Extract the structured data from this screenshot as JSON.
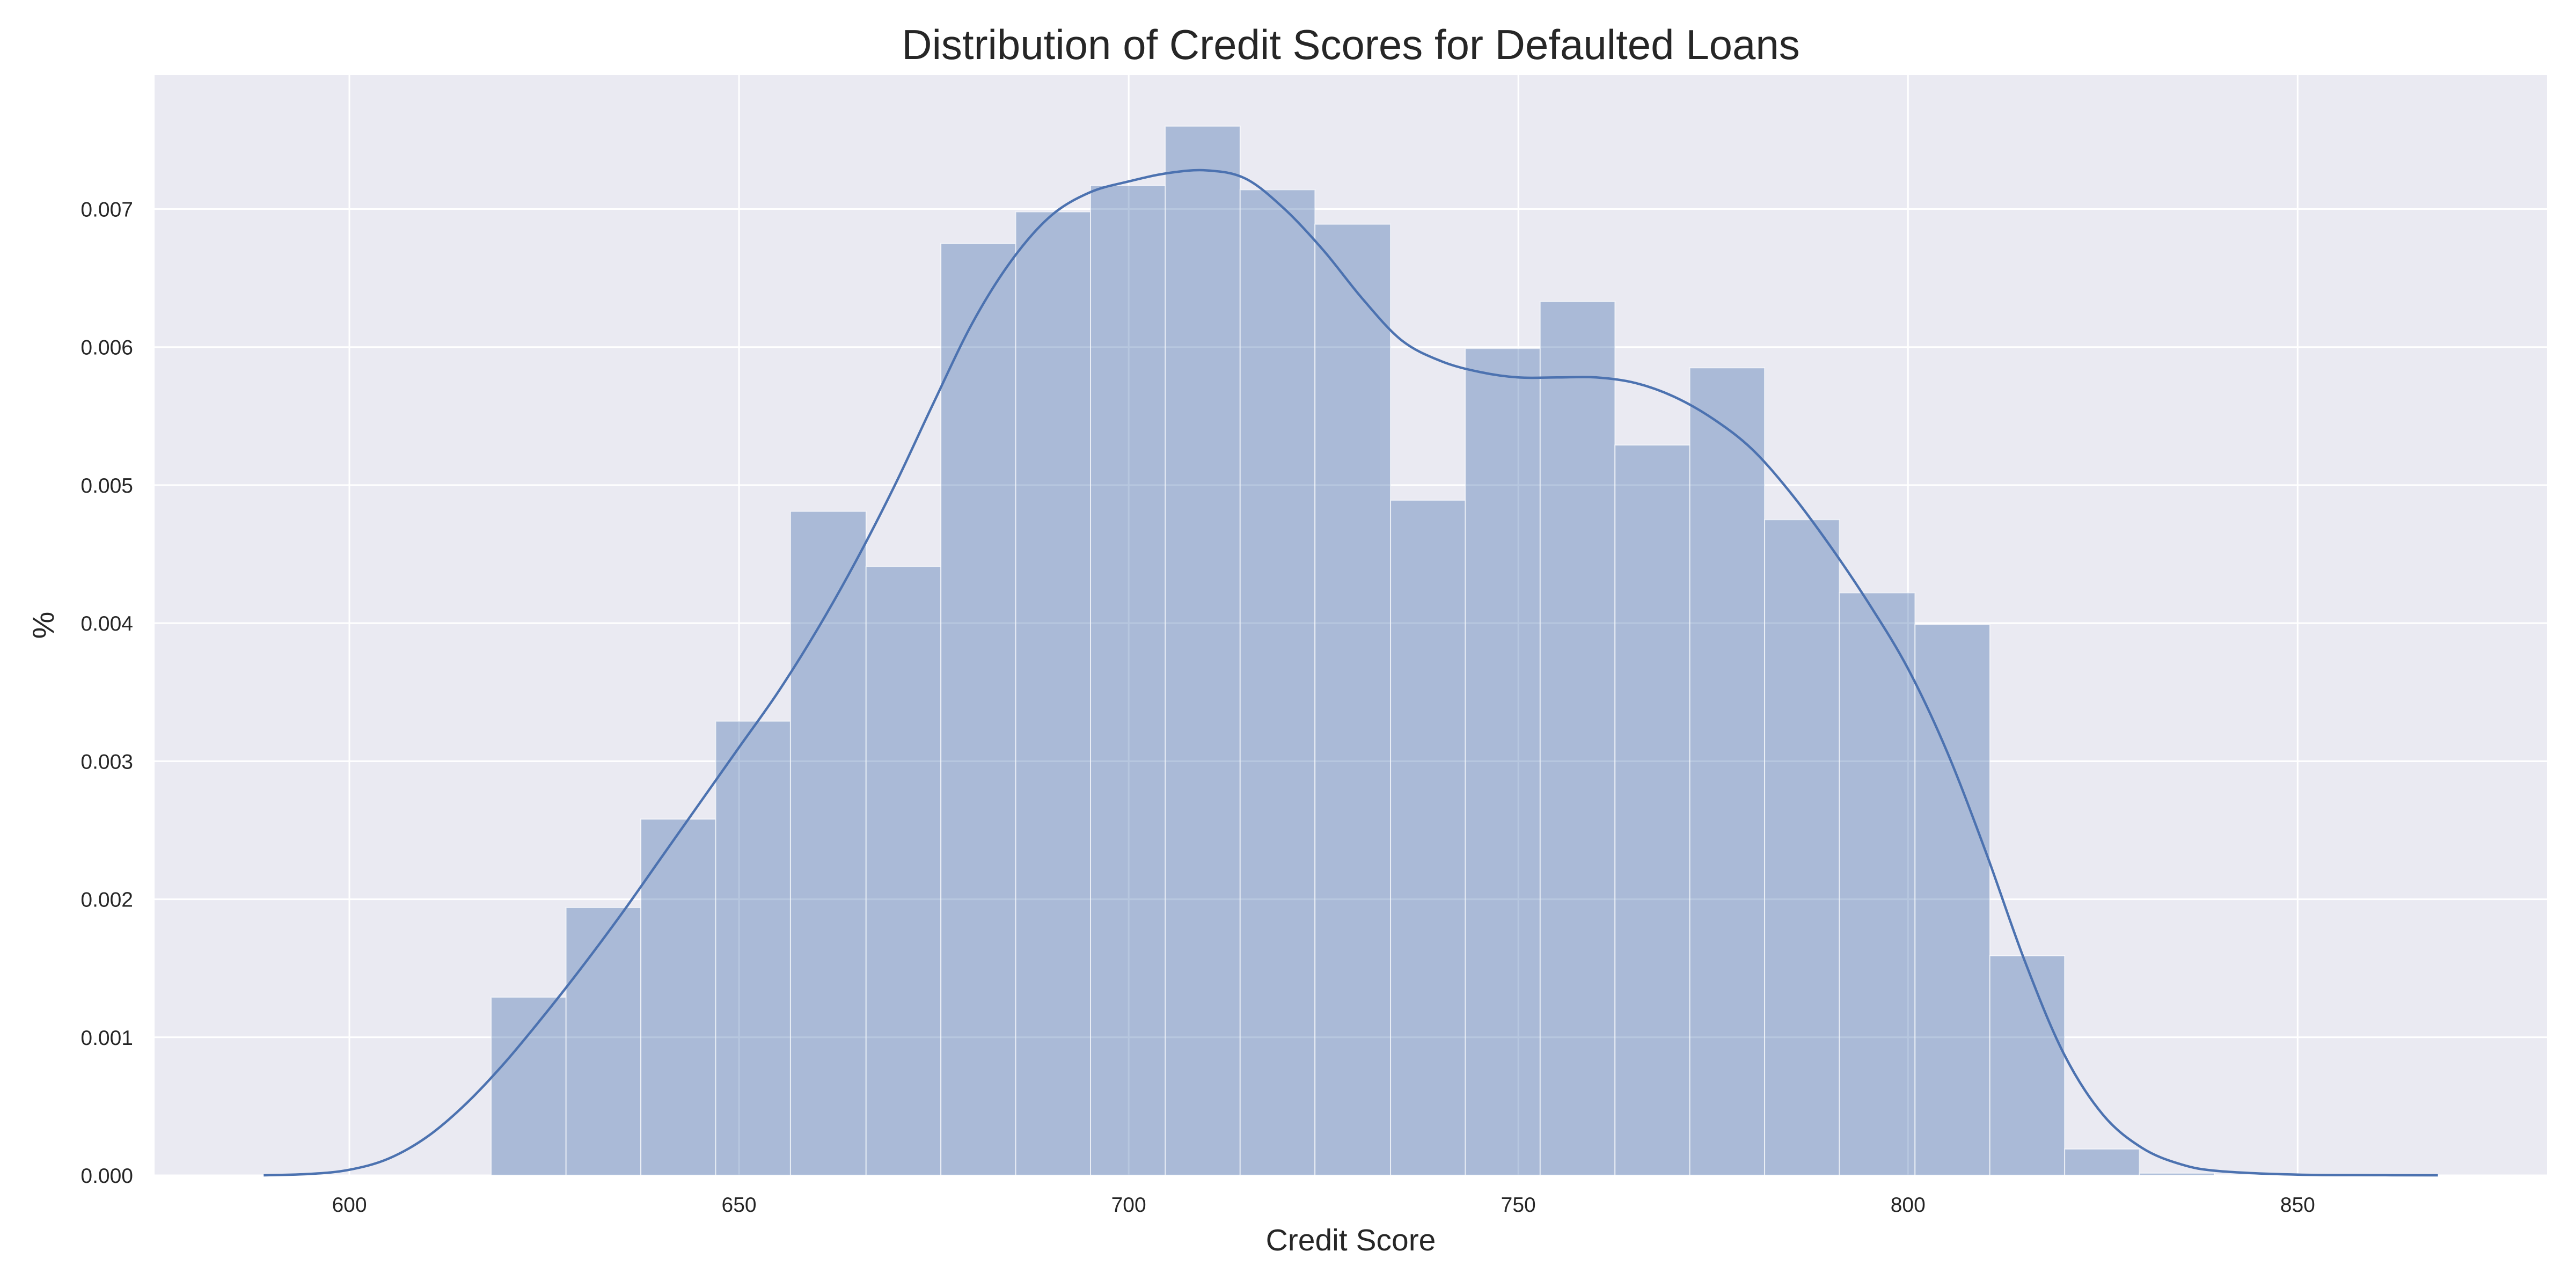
{
  "chart_data": {
    "type": "bar",
    "title": "Distribution of Credit Scores for Defaulted Loans",
    "xlabel": "Credit Score",
    "ylabel": "%",
    "xlim": [
      575,
      882
    ],
    "ylim": [
      0,
      0.00797
    ],
    "grid": true,
    "colors": {
      "plot_background": "#eaeaf2",
      "grid": "#ffffff",
      "bar_fill": "#4c72b0",
      "bar_opacity": 0.4,
      "kde_line": "#4c72b0"
    },
    "x_ticks": [
      600,
      650,
      700,
      750,
      800,
      850
    ],
    "x_tick_labels": [
      "600",
      "650",
      "700",
      "750",
      "800",
      "850"
    ],
    "y_ticks": [
      0,
      0.001,
      0.002,
      0.003,
      0.004,
      0.005,
      0.006,
      0.007
    ],
    "y_tick_labels": [
      "0.000",
      "0.001",
      "0.002",
      "0.003",
      "0.004",
      "0.005",
      "0.006",
      "0.007"
    ],
    "bins": [
      {
        "x0": 618.2,
        "x1": 627.8,
        "value": 0.00129
      },
      {
        "x0": 627.8,
        "x1": 637.4,
        "value": 0.00194
      },
      {
        "x0": 637.4,
        "x1": 647.0,
        "value": 0.00258
      },
      {
        "x0": 647.0,
        "x1": 656.6,
        "value": 0.00329
      },
      {
        "x0": 656.6,
        "x1": 666.3,
        "value": 0.00481
      },
      {
        "x0": 666.3,
        "x1": 675.9,
        "value": 0.00441
      },
      {
        "x0": 675.9,
        "x1": 685.5,
        "value": 0.00675
      },
      {
        "x0": 685.5,
        "x1": 695.1,
        "value": 0.00698
      },
      {
        "x0": 695.1,
        "x1": 704.7,
        "value": 0.00717
      },
      {
        "x0": 704.7,
        "x1": 714.3,
        "value": 0.0076
      },
      {
        "x0": 714.3,
        "x1": 723.9,
        "value": 0.00714
      },
      {
        "x0": 723.9,
        "x1": 733.6,
        "value": 0.00689
      },
      {
        "x0": 733.6,
        "x1": 743.2,
        "value": 0.00489
      },
      {
        "x0": 743.2,
        "x1": 752.8,
        "value": 0.00599
      },
      {
        "x0": 752.8,
        "x1": 762.4,
        "value": 0.00633
      },
      {
        "x0": 762.4,
        "x1": 772.0,
        "value": 0.00529
      },
      {
        "x0": 772.0,
        "x1": 781.6,
        "value": 0.00585
      },
      {
        "x0": 781.6,
        "x1": 791.2,
        "value": 0.00475
      },
      {
        "x0": 791.2,
        "x1": 800.9,
        "value": 0.00422
      },
      {
        "x0": 800.9,
        "x1": 810.5,
        "value": 0.00399
      },
      {
        "x0": 810.5,
        "x1": 820.1,
        "value": 0.00159
      },
      {
        "x0": 820.1,
        "x1": 829.7,
        "value": 0.00019
      },
      {
        "x0": 829.7,
        "x1": 839.3,
        "value": 1.5e-05
      }
    ],
    "kde": [
      [
        589,
        0.0
      ],
      [
        595,
        1e-05
      ],
      [
        600,
        4e-05
      ],
      [
        605,
        0.00012
      ],
      [
        610,
        0.00028
      ],
      [
        615,
        0.00052
      ],
      [
        620,
        0.00082
      ],
      [
        625,
        0.00116
      ],
      [
        630,
        0.00152
      ],
      [
        635,
        0.0019
      ],
      [
        640,
        0.0023
      ],
      [
        645,
        0.0027
      ],
      [
        650,
        0.0031
      ],
      [
        655,
        0.0035
      ],
      [
        660,
        0.00395
      ],
      [
        665,
        0.00445
      ],
      [
        670,
        0.005
      ],
      [
        675,
        0.0056
      ],
      [
        680,
        0.00618
      ],
      [
        685,
        0.00663
      ],
      [
        690,
        0.00695
      ],
      [
        695,
        0.00712
      ],
      [
        700,
        0.0072
      ],
      [
        705,
        0.00726
      ],
      [
        710,
        0.00728
      ],
      [
        715,
        0.00722
      ],
      [
        720,
        0.007
      ],
      [
        725,
        0.0067
      ],
      [
        730,
        0.00635
      ],
      [
        735,
        0.00605
      ],
      [
        740,
        0.0059
      ],
      [
        745,
        0.00582
      ],
      [
        750,
        0.00578
      ],
      [
        755,
        0.00578
      ],
      [
        760,
        0.00578
      ],
      [
        765,
        0.00574
      ],
      [
        770,
        0.00564
      ],
      [
        775,
        0.00548
      ],
      [
        780,
        0.00526
      ],
      [
        785,
        0.00494
      ],
      [
        790,
        0.00456
      ],
      [
        795,
        0.00414
      ],
      [
        800,
        0.00367
      ],
      [
        805,
        0.00307
      ],
      [
        810,
        0.00234
      ],
      [
        815,
        0.00155
      ],
      [
        820,
        0.00088
      ],
      [
        825,
        0.00044
      ],
      [
        830,
        0.0002
      ],
      [
        835,
        8e-05
      ],
      [
        840,
        3e-05
      ],
      [
        850,
        5e-06
      ],
      [
        860,
        1e-06
      ],
      [
        868,
        0.0
      ]
    ]
  }
}
